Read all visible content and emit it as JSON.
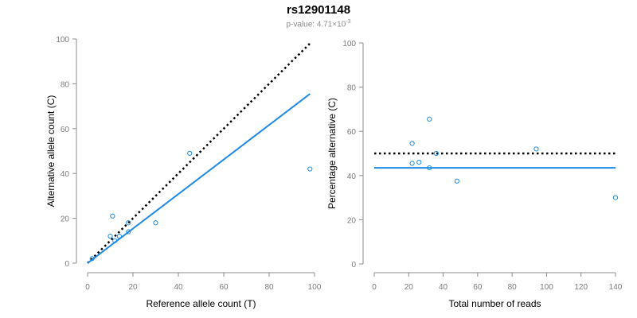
{
  "header": {
    "title": "rs12901148",
    "subtitle_prefix": "p-value: 4.71×10",
    "subtitle_exponent": "-3"
  },
  "colors": {
    "points": "#1a8ce6",
    "fit_line": "#1e88e5",
    "reference_line": "#000000",
    "axis": "#8c8c8c"
  },
  "chart_data": [
    {
      "type": "scatter",
      "title": "",
      "xlabel": "Reference allele count (T)",
      "ylabel": "Alternative allele count (C)",
      "xlim": [
        0,
        100
      ],
      "ylim": [
        0,
        100
      ],
      "xticks": [
        "0",
        "20",
        "40",
        "60",
        "80",
        "100"
      ],
      "yticks": [
        "0",
        "20",
        "40",
        "60",
        "80",
        "100"
      ],
      "grid": false,
      "points": [
        {
          "x": 2,
          "y": 2
        },
        {
          "x": 10,
          "y": 12
        },
        {
          "x": 11,
          "y": 21
        },
        {
          "x": 12,
          "y": 10
        },
        {
          "x": 14,
          "y": 12
        },
        {
          "x": 18,
          "y": 14
        },
        {
          "x": 18,
          "y": 18
        },
        {
          "x": 30,
          "y": 18
        },
        {
          "x": 45,
          "y": 49
        },
        {
          "x": 98,
          "y": 42
        }
      ],
      "lines": [
        {
          "style": "dotted",
          "color": "#000000",
          "x": [
            0,
            98
          ],
          "y": [
            0,
            98
          ]
        },
        {
          "style": "solid",
          "color": "#1e88e5",
          "x": [
            0,
            98
          ],
          "y": [
            0,
            75.5
          ]
        }
      ]
    },
    {
      "type": "scatter",
      "title": "",
      "xlabel": "Total number of reads",
      "ylabel": "Percentage alternative (C)",
      "xlim": [
        0,
        140
      ],
      "ylim": [
        0,
        100
      ],
      "xticks": [
        "0",
        "20",
        "40",
        "60",
        "80",
        "100",
        "120",
        "140"
      ],
      "yticks": [
        "0",
        "20",
        "40",
        "60",
        "80",
        "100"
      ],
      "grid": false,
      "points": [
        {
          "x": 22,
          "y": 54.5
        },
        {
          "x": 22,
          "y": 45.5
        },
        {
          "x": 26,
          "y": 46
        },
        {
          "x": 32,
          "y": 65.5
        },
        {
          "x": 32,
          "y": 43.5
        },
        {
          "x": 36,
          "y": 50
        },
        {
          "x": 48,
          "y": 37.5
        },
        {
          "x": 94,
          "y": 52
        },
        {
          "x": 140,
          "y": 30
        }
      ],
      "lines": [
        {
          "style": "dotted",
          "color": "#000000",
          "x": [
            0,
            140
          ],
          "y": [
            50,
            50
          ]
        },
        {
          "style": "solid",
          "color": "#1e88e5",
          "x": [
            0,
            140
          ],
          "y": [
            43.5,
            43.5
          ]
        }
      ]
    }
  ]
}
